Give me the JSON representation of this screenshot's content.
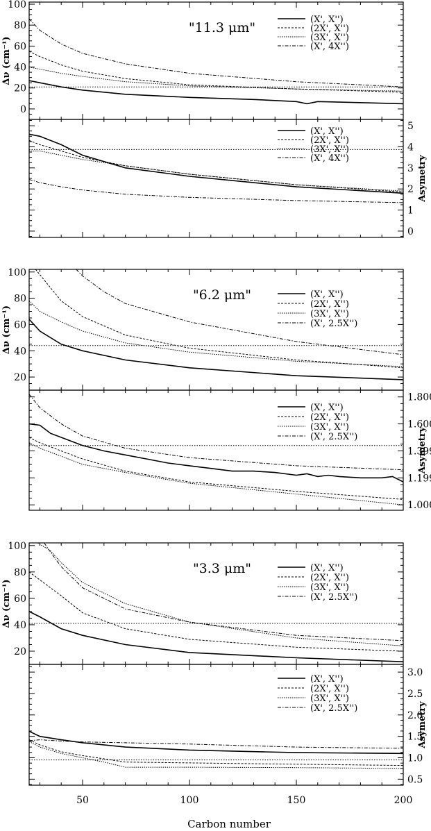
{
  "figure": {
    "xlabel": "Carbon number",
    "xlim": [
      25,
      200
    ],
    "xticks": [
      50,
      100,
      150,
      200
    ]
  },
  "chart_data": [
    {
      "type": "line",
      "band_label": "\"11.3 μm\"",
      "ylabel": "Δν (cm⁻¹)",
      "ylim": [
        -10,
        102
      ],
      "yticks": [
        0,
        20,
        40,
        60,
        80,
        100
      ],
      "ref_y": 21,
      "series": [
        {
          "name": "(X', X'')",
          "x": [
            25,
            30,
            40,
            50,
            70,
            100,
            130,
            150,
            155,
            160,
            200
          ],
          "y": [
            27,
            25,
            21,
            18,
            14,
            11,
            9,
            7,
            5,
            7,
            5
          ]
        },
        {
          "name": "(2X', X'')",
          "x": [
            25,
            30,
            40,
            50,
            70,
            100,
            150,
            200
          ],
          "y": [
            55,
            50,
            42,
            36,
            29,
            23,
            19,
            16
          ]
        },
        {
          "name": "(3X', X'')",
          "x": [
            25,
            30,
            40,
            50,
            70,
            100,
            150,
            200
          ],
          "y": [
            40,
            38,
            34,
            31,
            26,
            22,
            19,
            17
          ]
        },
        {
          "name": "(X', 4X'')",
          "x": [
            25,
            30,
            40,
            50,
            70,
            100,
            150,
            200
          ],
          "y": [
            86,
            75,
            62,
            53,
            43,
            34,
            26,
            21
          ]
        }
      ]
    },
    {
      "type": "line",
      "ylabel": "Asymetry",
      "ylim": [
        -0.3,
        5.3
      ],
      "yticks": [
        0,
        1,
        2,
        3,
        4,
        5
      ],
      "ref_y": 3.87,
      "series": [
        {
          "name": "(X', X'')",
          "x": [
            25,
            30,
            40,
            50,
            70,
            100,
            150,
            200
          ],
          "y": [
            4.6,
            4.5,
            4.1,
            3.6,
            3.0,
            2.6,
            2.1,
            1.8
          ]
        },
        {
          "name": "(2X', X'')",
          "x": [
            25,
            30,
            40,
            50,
            70,
            100,
            150,
            200
          ],
          "y": [
            4.3,
            4.1,
            3.8,
            3.5,
            3.1,
            2.7,
            2.2,
            1.85
          ]
        },
        {
          "name": "(3X', X'')",
          "x": [
            25,
            30,
            40,
            50,
            70,
            100,
            150,
            200
          ],
          "y": [
            3.8,
            3.8,
            3.6,
            3.4,
            3.1,
            2.7,
            2.2,
            1.9
          ]
        },
        {
          "name": "(X', 4X'')",
          "x": [
            25,
            30,
            40,
            50,
            70,
            100,
            150,
            200
          ],
          "y": [
            2.45,
            2.3,
            2.1,
            1.95,
            1.75,
            1.6,
            1.45,
            1.35
          ]
        }
      ]
    },
    {
      "type": "line",
      "band_label": "\"6.2 μm\"",
      "ylabel": "Δν (cm⁻¹)",
      "ylim": [
        10,
        102
      ],
      "yticks": [
        20,
        40,
        60,
        80,
        100
      ],
      "ref_y": 44,
      "series": [
        {
          "name": "(X', X'')",
          "x": [
            25,
            30,
            40,
            50,
            70,
            100,
            150,
            200
          ],
          "y": [
            64,
            55,
            45,
            40,
            33,
            27,
            21,
            18
          ]
        },
        {
          "name": "(2X', X'')",
          "x": [
            28,
            35,
            40,
            50,
            70,
            100,
            150,
            200
          ],
          "y": [
            102,
            88,
            78,
            66,
            52,
            42,
            33,
            27
          ]
        },
        {
          "name": "(3X', X'')",
          "x": [
            25,
            30,
            40,
            50,
            70,
            100,
            150,
            200
          ],
          "y": [
            78,
            70,
            62,
            55,
            46,
            39,
            32,
            28
          ]
        },
        {
          "name": "(X', 2.5X'')",
          "x": [
            47,
            50,
            60,
            70,
            100,
            150,
            200
          ],
          "y": [
            102,
            97,
            85,
            76,
            62,
            47,
            37
          ]
        }
      ]
    },
    {
      "type": "line",
      "ylabel": "Asymetry",
      "ylim": [
        0.96,
        1.85
      ],
      "yticks": [
        1.0,
        1.2,
        1.4,
        1.6,
        1.8
      ],
      "ref_y": 1.44,
      "series": [
        {
          "name": "(X', X'')",
          "x": [
            25,
            30,
            35,
            40,
            50,
            60,
            70,
            80,
            90,
            100,
            110,
            120,
            130,
            140,
            150,
            155,
            160,
            165,
            170,
            180,
            190,
            195,
            200
          ],
          "y": [
            1.6,
            1.59,
            1.53,
            1.5,
            1.44,
            1.4,
            1.37,
            1.34,
            1.31,
            1.29,
            1.27,
            1.25,
            1.25,
            1.24,
            1.22,
            1.23,
            1.21,
            1.22,
            1.21,
            1.2,
            1.2,
            1.21,
            1.17
          ]
        },
        {
          "name": "(2X', X'')",
          "x": [
            25,
            30,
            40,
            50,
            70,
            100,
            150,
            200
          ],
          "y": [
            1.5,
            1.46,
            1.4,
            1.34,
            1.25,
            1.17,
            1.1,
            1.04
          ]
        },
        {
          "name": "(3X', X'')",
          "x": [
            25,
            30,
            40,
            50,
            70,
            100,
            150,
            200
          ],
          "y": [
            1.46,
            1.42,
            1.36,
            1.3,
            1.24,
            1.16,
            1.08,
            1.0
          ]
        },
        {
          "name": "(X', 2.5X'')",
          "x": [
            25,
            30,
            40,
            50,
            70,
            100,
            150,
            200
          ],
          "y": [
            1.82,
            1.72,
            1.6,
            1.51,
            1.42,
            1.35,
            1.29,
            1.26
          ]
        }
      ]
    },
    {
      "type": "line",
      "band_label": "\"3.3 μm\"",
      "ylabel": "Δν (cm⁻¹)",
      "ylim": [
        10,
        102
      ],
      "yticks": [
        20,
        40,
        60,
        80,
        100
      ],
      "ref_y": 41,
      "series": [
        {
          "name": "(X', X'')",
          "x": [
            25,
            30,
            40,
            50,
            70,
            100,
            150,
            200
          ],
          "y": [
            50,
            46,
            37,
            32,
            25,
            19,
            15,
            12
          ]
        },
        {
          "name": "(2X', X'')",
          "x": [
            25,
            30,
            40,
            50,
            70,
            100,
            150,
            200
          ],
          "y": [
            80,
            74,
            62,
            49,
            37,
            29,
            23,
            20
          ]
        },
        {
          "name": "(3X', X'')",
          "x": [
            29,
            35,
            40,
            50,
            70,
            100,
            150,
            200
          ],
          "y": [
            102,
            96,
            87,
            72,
            56,
            42,
            30,
            24
          ]
        },
        {
          "name": "(X', 2.5X'')",
          "x": [
            32,
            35,
            40,
            50,
            70,
            100,
            150,
            200
          ],
          "y": [
            102,
            95,
            84,
            68,
            52,
            42,
            32,
            28
          ]
        }
      ]
    },
    {
      "type": "line",
      "ylabel": "Asymetry",
      "ylim": [
        0.36,
        3.18
      ],
      "yticks": [
        0.5,
        1.0,
        1.5,
        2.0,
        2.5,
        3.0
      ],
      "ref_y": 0.95,
      "series": [
        {
          "name": "(X', X'')",
          "x": [
            25,
            30,
            40,
            50,
            70,
            100,
            150,
            200
          ],
          "y": [
            1.62,
            1.5,
            1.42,
            1.35,
            1.25,
            1.18,
            1.12,
            1.1
          ]
        },
        {
          "name": "(2X', X'')",
          "x": [
            25,
            30,
            40,
            50,
            70,
            100,
            150,
            200
          ],
          "y": [
            1.42,
            1.3,
            1.14,
            1.05,
            0.9,
            0.88,
            0.85,
            0.82
          ]
        },
        {
          "name": "(3X', X'')",
          "x": [
            25,
            30,
            40,
            50,
            60,
            70,
            80,
            100,
            150,
            200
          ],
          "y": [
            1.38,
            1.25,
            1.1,
            1.0,
            0.9,
            0.78,
            0.78,
            0.78,
            0.77,
            0.75
          ]
        },
        {
          "name": "(X', 2.5X'')",
          "x": [
            25,
            30,
            40,
            50,
            70,
            100,
            150,
            200
          ],
          "y": [
            1.4,
            1.42,
            1.39,
            1.37,
            1.35,
            1.32,
            1.25,
            1.22
          ]
        }
      ]
    }
  ]
}
